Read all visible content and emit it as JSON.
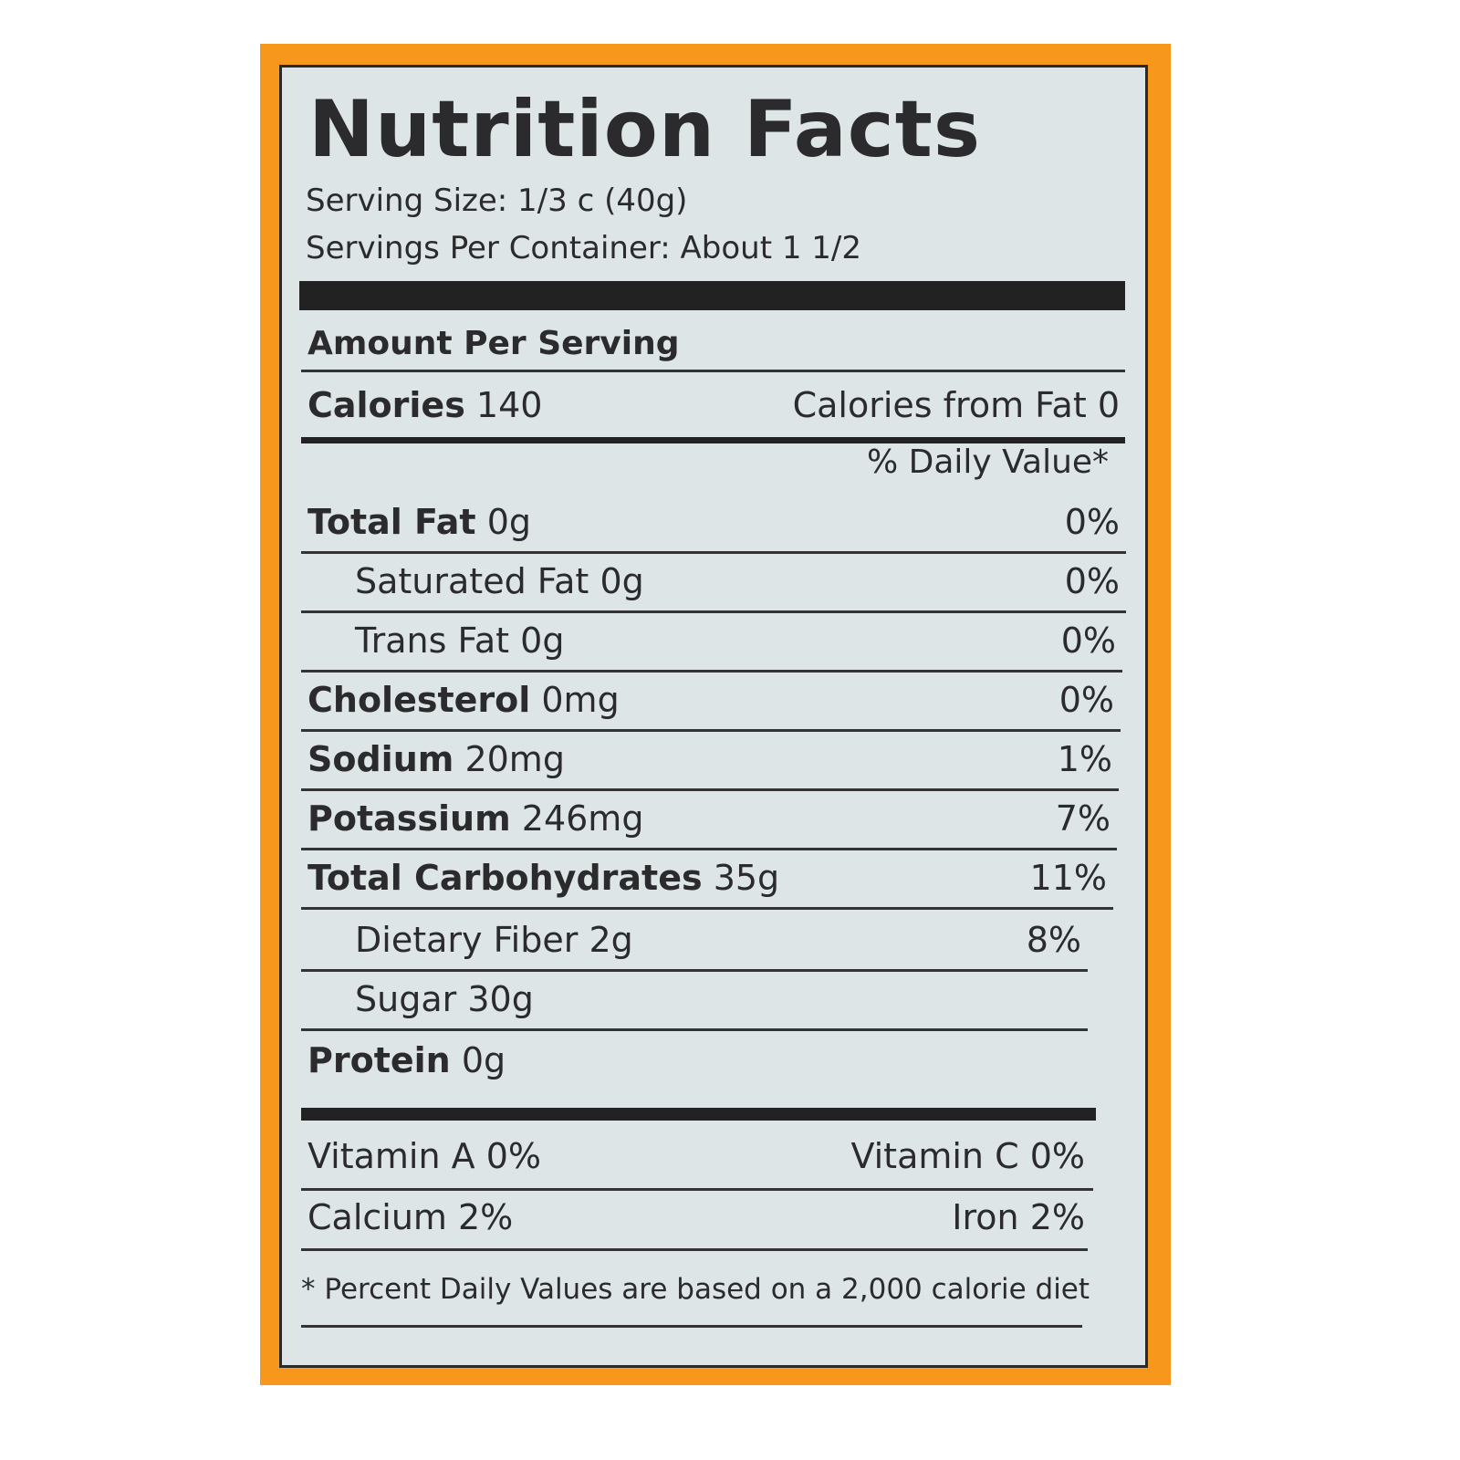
{
  "colors": {
    "background": "#f7981d",
    "panel": "#dde5e6",
    "text": "#2b2b2d"
  },
  "title": "Nutrition Facts",
  "serving_size": "Serving Size: 1/3 c (40g)",
  "servings_per_container": "Servings Per Container: About 1 1/2",
  "amount_per_serving": "Amount Per Serving",
  "calories": {
    "label": "Calories",
    "value": "140",
    "from_fat": "Calories from Fat 0"
  },
  "daily_value_header": "% Daily Value*",
  "nutrients": [
    {
      "label": "Total Fat",
      "amount": "0g",
      "dv": "0%"
    },
    {
      "label": "Saturated Fat",
      "amount": "0g",
      "dv": "0%"
    },
    {
      "label": "Trans Fat",
      "amount": "0g",
      "dv": "0%"
    },
    {
      "label": "Cholesterol",
      "amount": "0mg",
      "dv": "0%"
    },
    {
      "label": "Sodium",
      "amount": "20mg",
      "dv": "1%"
    },
    {
      "label": "Potassium",
      "amount": "246mg",
      "dv": "7%"
    },
    {
      "label": "Total Carbohydrates",
      "amount": "35g",
      "dv": "11%"
    },
    {
      "label": "Dietary Fiber",
      "amount": "2g",
      "dv": "8%"
    },
    {
      "label": "Sugar",
      "amount": "30g",
      "dv": ""
    },
    {
      "label": "Protein",
      "amount": "0g",
      "dv": ""
    }
  ],
  "vitamins": [
    {
      "left": "Vitamin A 0%",
      "right": "Vitamin C 0%"
    },
    {
      "left": "Calcium 2%",
      "right": "Iron 2%"
    }
  ],
  "footnote": "* Percent Daily Values are based on a 2,000 calorie diet"
}
